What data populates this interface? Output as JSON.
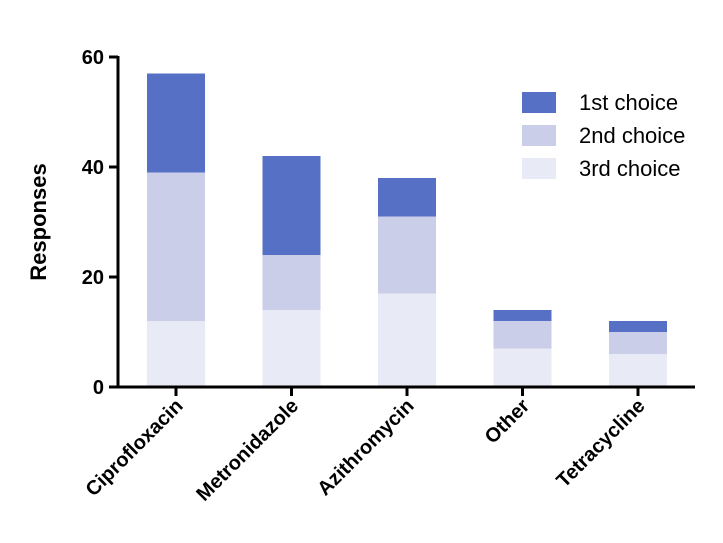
{
  "chart_data": {
    "type": "bar",
    "stacked": true,
    "title": "",
    "xlabel": "",
    "ylabel": "Responses",
    "ylim": [
      0,
      60
    ],
    "yticks": [
      0,
      20,
      40,
      60
    ],
    "grid": false,
    "legend_position": "top-right",
    "categories": [
      "Ciprofloxacin",
      "Metronidazole",
      "Azithromycin",
      "Other",
      "Tetracycline"
    ],
    "series": [
      {
        "name": "3rd choice",
        "color": "#e8eaf5",
        "values": [
          12,
          14,
          17,
          7,
          6
        ]
      },
      {
        "name": "2nd choice",
        "color": "#cbcee8",
        "values": [
          27,
          10,
          14,
          5,
          4
        ]
      },
      {
        "name": "1st choice",
        "color": "#5570c5",
        "values": [
          18,
          18,
          7,
          2,
          2
        ]
      }
    ],
    "legend_order": [
      "1st choice",
      "2nd choice",
      "3rd choice"
    ]
  }
}
